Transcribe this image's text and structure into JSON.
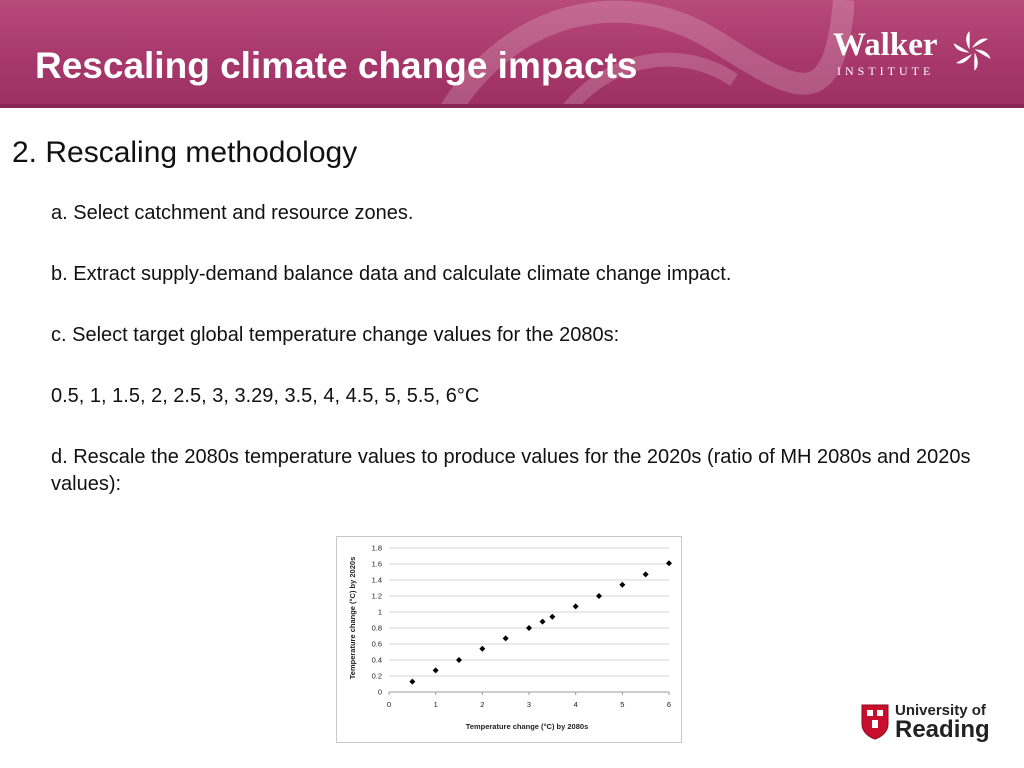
{
  "header": {
    "title": "Rescaling climate change impacts",
    "logo_word": "Walker",
    "logo_sub": "INSTITUTE",
    "background_color": "#a8386b"
  },
  "section": {
    "heading": "2. Rescaling methodology"
  },
  "items": [
    "a. Select catchment and resource zones.",
    "b. Extract supply-demand balance data and calculate climate change impact.",
    "c. Select target global temperature change values for the 2080s:",
    "0.5, 1, 1.5, 2, 2.5, 3, 3.29, 3.5, 4, 4.5, 5, 5.5, 6°C",
    "d. Rescale the 2080s temperature values to produce values for the 2020s (ratio of MH 2080s and 2020s values):"
  ],
  "chart_data": {
    "type": "scatter",
    "xlabel": "Temperature change (°C) by 2080s",
    "ylabel": "Temperature change (°C) by 2020s",
    "xlim": [
      0,
      6
    ],
    "ylim": [
      0,
      1.8
    ],
    "xticks": [
      "0",
      "1",
      "2",
      "3",
      "4",
      "5",
      "6"
    ],
    "yticks": [
      "0",
      "0.2",
      "0.4",
      "0.6",
      "0.8",
      "1",
      "1.2",
      "1.4",
      "1.6",
      "1.8"
    ],
    "grid": true,
    "marker": "diamond",
    "marker_color": "#000000",
    "x": [
      0.5,
      1,
      1.5,
      2,
      2.5,
      3,
      3.29,
      3.5,
      4,
      4.5,
      5,
      5.5,
      6
    ],
    "y": [
      0.13,
      0.27,
      0.4,
      0.54,
      0.67,
      0.8,
      0.88,
      0.94,
      1.07,
      1.2,
      1.34,
      1.47,
      1.61
    ]
  },
  "footer_logo": {
    "line1": "University of",
    "line2": "Reading"
  }
}
